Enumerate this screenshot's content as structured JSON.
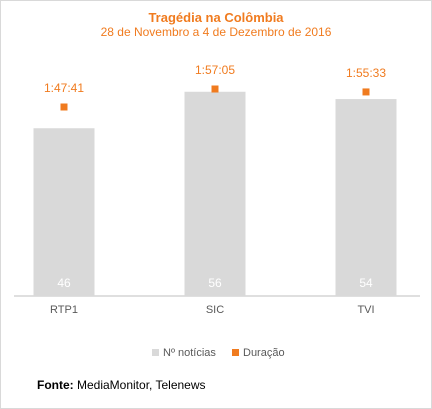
{
  "chart_data": {
    "type": "bar",
    "title": "Tragédia na Colômbia",
    "subtitle": "28 de Novembro a 4 de Dezembro de 2016",
    "categories": [
      "RTP1",
      "SIC",
      "TVI"
    ],
    "series": [
      {
        "name": "Nº notícias",
        "type": "bar",
        "values": [
          46,
          56,
          54
        ],
        "color": "#d9d9d9"
      },
      {
        "name": "Duração",
        "type": "marker",
        "values": [
          "1:47:41",
          "1:57:05",
          "1:55:33"
        ],
        "seconds": [
          6461,
          7025,
          6933
        ],
        "color": "#f07b1f"
      }
    ],
    "ylim": [
      0,
      68
    ],
    "grid": false,
    "legend": "bottom"
  },
  "legend": {
    "noticias_label": "Nº notícias",
    "duracao_label": "Duração"
  },
  "source": {
    "label": "Fonte:",
    "text": " MediaMonitor, Telenews"
  },
  "colors": {
    "accent": "#f07b1f",
    "bar": "#d9d9d9",
    "axis": "#bfbfbf"
  }
}
